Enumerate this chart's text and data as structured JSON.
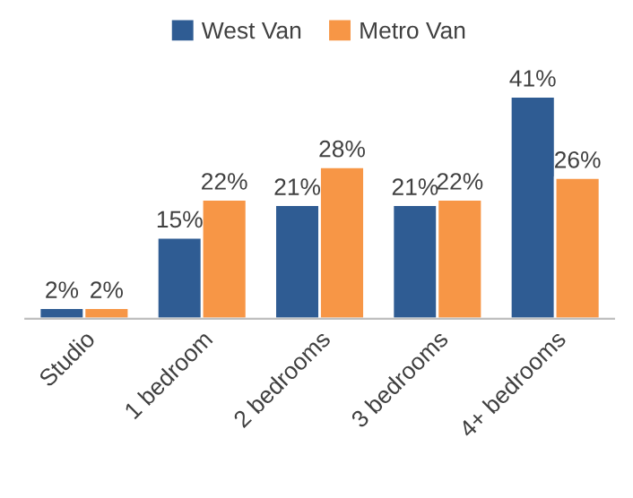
{
  "chart_data": {
    "type": "bar",
    "categories": [
      "Studio",
      "1 bedroom",
      "2 bedrooms",
      "3 bedrooms",
      "4+ bedrooms"
    ],
    "series": [
      {
        "name": "West Van",
        "color": "#2f5c93",
        "values": [
          2,
          15,
          21,
          21,
          41
        ],
        "value_labels": [
          "2%",
          "15%",
          "21%",
          "21%",
          "41%"
        ]
      },
      {
        "name": "Metro Van",
        "color": "#f79646",
        "values": [
          2,
          22,
          28,
          22,
          26
        ],
        "value_labels": [
          "2%",
          "22%",
          "28%",
          "22%",
          "26%"
        ]
      }
    ],
    "legend": "top",
    "grid": false
  }
}
